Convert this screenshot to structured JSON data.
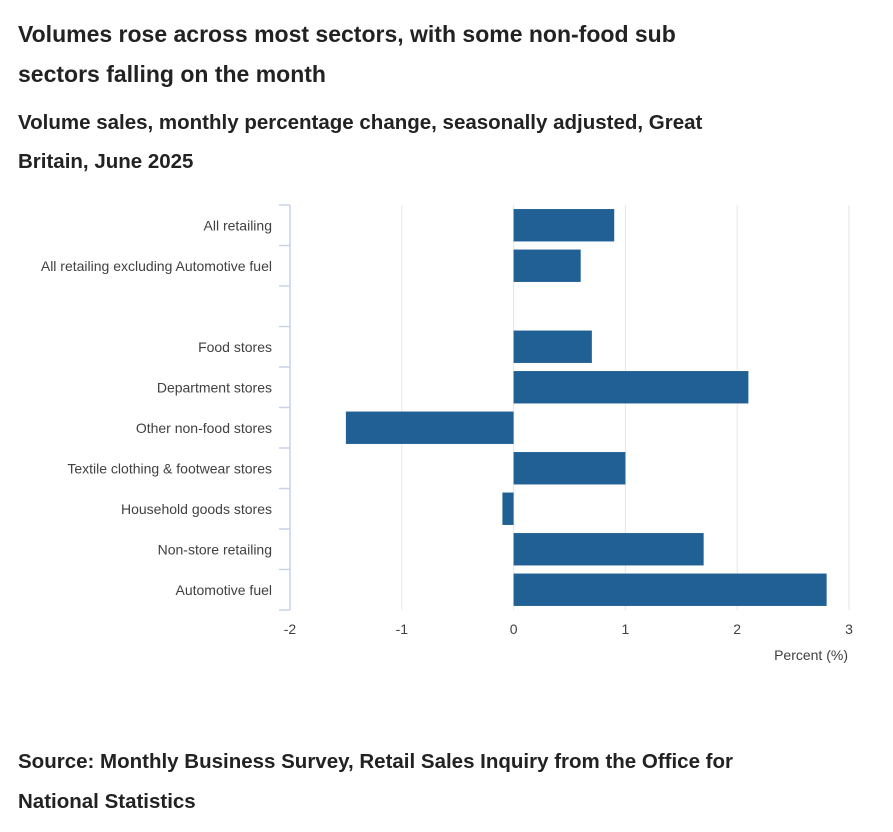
{
  "title": "Volumes rose across most sectors, with some non-food sub sectors falling on the month",
  "subtitle": "Volume sales, monthly percentage change, seasonally adjusted, Great Britain, June 2025",
  "source": "Source: Monthly Business Survey, Retail Sales Inquiry from the Office for National Statistics",
  "chart_data": {
    "type": "bar",
    "orientation": "horizontal",
    "categories": [
      "All retailing",
      "All retailing excluding Automotive fuel",
      "",
      "Food stores",
      "Department stores",
      "Other non-food stores",
      "Textile clothing & footwear stores",
      "Household goods stores",
      "Non-store retailing",
      "Automotive fuel"
    ],
    "values": [
      0.9,
      0.6,
      null,
      0.7,
      2.1,
      -1.5,
      1.0,
      -0.1,
      1.7,
      2.8
    ],
    "xlabel": "Percent (%)",
    "ylabel": "",
    "xlim": [
      -2,
      3
    ],
    "xticks": [
      "-2",
      "-1",
      "0",
      "1",
      "2",
      "3"
    ],
    "grid": true,
    "bar_color": "#206095",
    "grid_color": "#e6e6e6",
    "axis_color": "#c8d2e8"
  }
}
